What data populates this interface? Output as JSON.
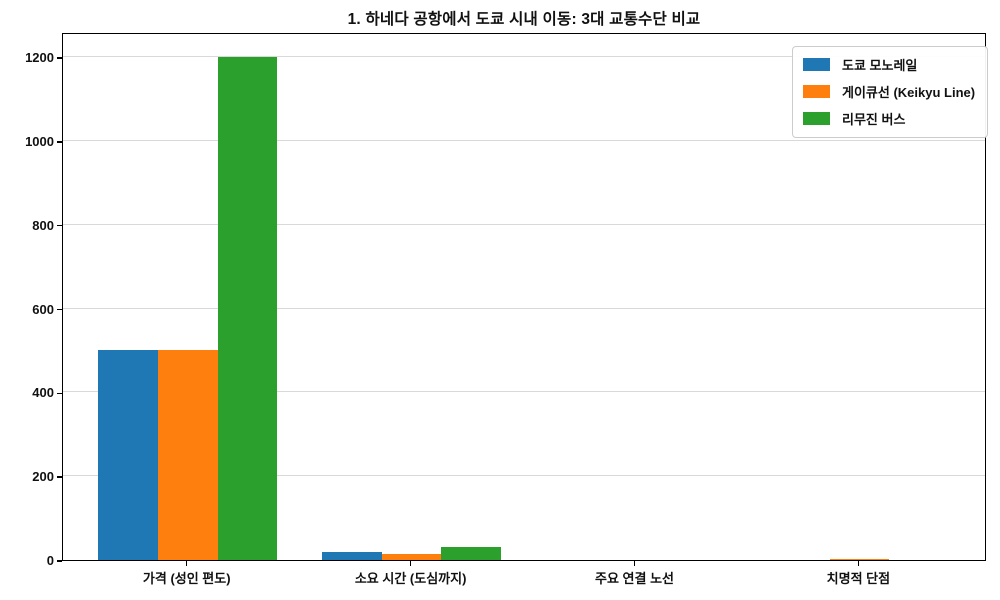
{
  "chart_data": {
    "type": "bar",
    "title": "1. 하네다 공항에서 도쿄 시내 이동: 3대 교통수단 비교",
    "categories": [
      "가격 (성인 편도)",
      "소요 시간 (도심까지)",
      "주요 연결 노선",
      "치명적 단점"
    ],
    "series": [
      {
        "name": "도쿄 모노레일",
        "color": "#1f77b4",
        "values": [
          500,
          20,
          0,
          0
        ]
      },
      {
        "name": "게이큐선 (Keikyu Line)",
        "color": "#ff7f0e",
        "values": [
          500,
          15,
          0,
          1
        ]
      },
      {
        "name": "리무진 버스",
        "color": "#2ca02c",
        "values": [
          1200,
          30,
          0,
          0
        ]
      }
    ],
    "xlabel": "",
    "ylabel": "",
    "ylim": [
      0,
      1260
    ],
    "yticks": [
      0,
      200,
      400,
      600,
      800,
      1000,
      1200
    ],
    "grid": "horizontal",
    "grid_color": "#d9d9d9",
    "legend_position": "upper-right",
    "spine_color": "#000000",
    "background_color": "#ffffff"
  }
}
